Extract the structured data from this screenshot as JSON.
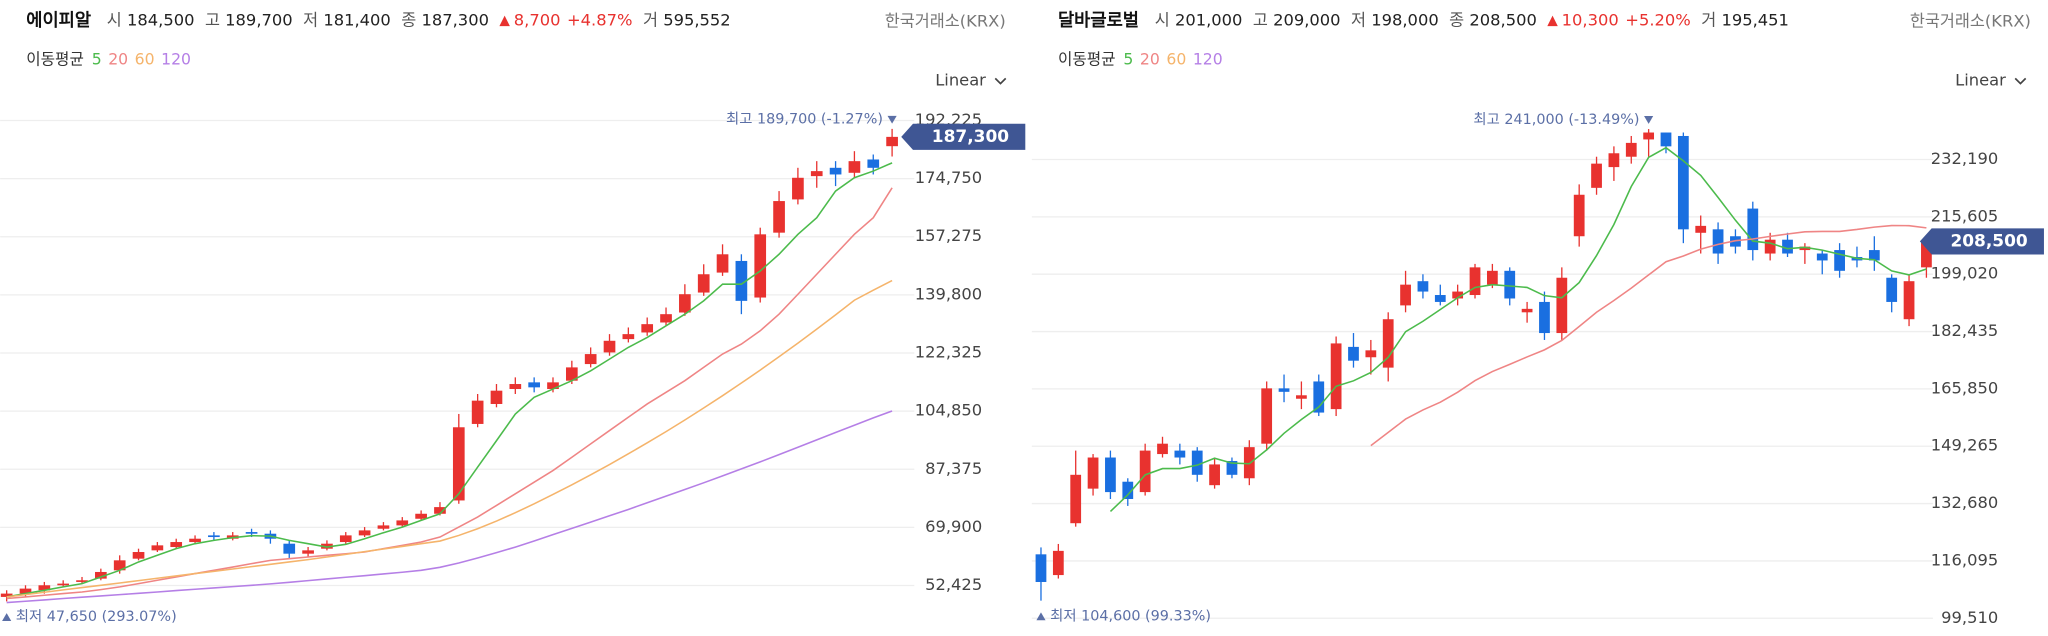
{
  "chart_data": [
    {
      "type": "candlestick",
      "title": "에이피알",
      "stats": [
        {
          "label": "시",
          "text": "184,500"
        },
        {
          "label": "고",
          "text": "189,700"
        },
        {
          "label": "저",
          "text": "181,400"
        },
        {
          "label": "종",
          "text": "187,300"
        }
      ],
      "change": {
        "text": "8,700",
        "percent": "+4.87%"
      },
      "volume": {
        "label": "거",
        "text": "595,552"
      },
      "exchange": "한국거래소(KRX)",
      "ma_label": "이동평균",
      "scale_label": "Linear",
      "high_label": "최고 189,700 (-1.27%)",
      "low_label": "최저 47,650 (293.07%)",
      "last_price": {
        "value": 187300,
        "label": "187,300"
      },
      "up_color": "#e8322f",
      "down_color": "#1a6fe0",
      "grid": true,
      "ylim": [
        40000,
        199000
      ],
      "yticks": [
        {
          "value": 52425,
          "label": "52,425"
        },
        {
          "value": 69900,
          "label": "69,900"
        },
        {
          "value": 87375,
          "label": "87,375"
        },
        {
          "value": 104850,
          "label": "104,850"
        },
        {
          "value": 122325,
          "label": "122,325"
        },
        {
          "value": 139800,
          "label": "139,800"
        },
        {
          "value": 157275,
          "label": "157,275"
        },
        {
          "value": 174750,
          "label": "174,750"
        },
        {
          "value": 192225,
          "label": "192,225"
        }
      ],
      "candles": {
        "open": [
          49000,
          50000,
          51000,
          52500,
          53500,
          54500,
          57000,
          60500,
          63000,
          64000,
          65500,
          67500,
          66500,
          68500,
          68000,
          65000,
          62000,
          63500,
          65500,
          67500,
          69500,
          70500,
          72500,
          74000,
          78000,
          101000,
          107000,
          111500,
          113500,
          111500,
          114000,
          119000,
          122500,
          126500,
          128500,
          131500,
          134500,
          140500,
          146500,
          150000,
          139000,
          158500,
          168500,
          175500,
          178000,
          176500,
          180500,
          184500
        ],
        "high": [
          51000,
          52500,
          53500,
          54000,
          55000,
          57500,
          61500,
          63500,
          65500,
          66500,
          67500,
          68500,
          68500,
          69500,
          69000,
          66000,
          64000,
          66000,
          68500,
          70000,
          71500,
          73000,
          75000,
          77500,
          104000,
          110000,
          113000,
          115000,
          115000,
          115000,
          120000,
          124000,
          128000,
          130000,
          133000,
          136000,
          143000,
          149000,
          155000,
          152000,
          160000,
          171000,
          178000,
          180000,
          180000,
          183000,
          182000,
          189700
        ],
        "low": [
          47650,
          49000,
          50000,
          52000,
          53000,
          54000,
          56000,
          60000,
          62500,
          63500,
          65000,
          66000,
          66000,
          67000,
          65000,
          60500,
          61000,
          63000,
          65000,
          67000,
          69000,
          70000,
          72000,
          73500,
          77000,
          100000,
          106000,
          110000,
          110500,
          110500,
          113000,
          118000,
          121500,
          125500,
          127500,
          130500,
          133500,
          139500,
          145500,
          134000,
          137500,
          157000,
          167000,
          172000,
          172500,
          175000,
          176000,
          181400
        ],
        "close": [
          50000,
          51500,
          52500,
          53000,
          54000,
          56500,
          60000,
          62500,
          64500,
          65500,
          66500,
          67000,
          67500,
          68000,
          66500,
          62000,
          63000,
          65000,
          67500,
          69000,
          70500,
          72000,
          74000,
          76000,
          100000,
          108000,
          111000,
          113000,
          112000,
          113500,
          118000,
          122000,
          126000,
          128000,
          131000,
          134000,
          140000,
          146000,
          152000,
          138000,
          158000,
          168000,
          175000,
          177000,
          176000,
          180000,
          178000,
          187300
        ]
      },
      "series": [
        {
          "name": "5",
          "color": "#4cbb4c",
          "values": [
            49000,
            50000,
            51000,
            52000,
            53000,
            55000,
            57000,
            59500,
            61500,
            63500,
            65000,
            66000,
            66800,
            67400,
            67300,
            66000,
            65000,
            64000,
            64800,
            66500,
            68300,
            70000,
            72000,
            74000,
            80000,
            88000,
            96000,
            104000,
            109000,
            111500,
            114000,
            117000,
            120500,
            124000,
            127000,
            130500,
            134000,
            138000,
            143000,
            143000,
            147000,
            152000,
            158000,
            163000,
            171000,
            175000,
            177000,
            179500
          ]
        },
        {
          "name": "20",
          "color": "#ef8585",
          "values": [
            48500,
            49000,
            49500,
            50000,
            50500,
            51200,
            52000,
            53000,
            54000,
            55000,
            56000,
            57000,
            58000,
            59000,
            60000,
            60500,
            61000,
            61500,
            62000,
            62500,
            63500,
            64500,
            65500,
            67000,
            70000,
            73000,
            76500,
            80000,
            83500,
            87000,
            91000,
            95000,
            99000,
            103000,
            107000,
            110500,
            114000,
            118000,
            122000,
            125000,
            129000,
            134000,
            140000,
            146000,
            152000,
            158000,
            163000,
            172000
          ]
        },
        {
          "name": "60",
          "color": "#f5b46b",
          "values": [
            49000,
            49700,
            50400,
            51100,
            51800,
            52500,
            53200,
            53900,
            54600,
            55300,
            56000,
            56700,
            57400,
            58100,
            58800,
            59500,
            60200,
            61000,
            61800,
            62600,
            63400,
            64200,
            65000,
            65800,
            67500,
            69500,
            71800,
            74300,
            77000,
            79800,
            82700,
            85700,
            88800,
            92000,
            95300,
            98700,
            102200,
            105800,
            109500,
            113300,
            117200,
            121200,
            125300,
            129500,
            133800,
            138200,
            141200,
            144100
          ]
        },
        {
          "name": "120",
          "color": "#b57fe6",
          "values": [
            47300,
            47700,
            48100,
            48500,
            48900,
            49300,
            49700,
            50100,
            50500,
            50900,
            51300,
            51700,
            52100,
            52500,
            52900,
            53400,
            53900,
            54400,
            54900,
            55400,
            55900,
            56400,
            57000,
            57900,
            59200,
            60700,
            62300,
            64000,
            65800,
            67700,
            69600,
            71500,
            73400,
            75300,
            77300,
            79300,
            81300,
            83300,
            85400,
            87500,
            89600,
            91800,
            94000,
            96200,
            98400,
            100600,
            102800,
            104900
          ]
        }
      ]
    },
    {
      "type": "candlestick",
      "title": "달바글로벌",
      "stats": [
        {
          "label": "시",
          "text": "201,000"
        },
        {
          "label": "고",
          "text": "209,000"
        },
        {
          "label": "저",
          "text": "198,000"
        },
        {
          "label": "종",
          "text": "208,500"
        }
      ],
      "change": {
        "text": "10,300",
        "percent": "+5.20%"
      },
      "volume": {
        "label": "거",
        "text": "195,451"
      },
      "exchange": "한국거래소(KRX)",
      "ma_label": "이동평균",
      "scale_label": "Linear",
      "high_label": "최고 241,000 (-13.49%)",
      "low_label": "최저 104,600 (99.33%)",
      "last_price": {
        "value": 208500,
        "label": "208,500"
      },
      "up_color": "#e8322f",
      "down_color": "#1a6fe0",
      "grid": true,
      "ylim": [
        94000,
        250000
      ],
      "yticks": [
        {
          "value": 99510,
          "label": "99,510"
        },
        {
          "value": 116095,
          "label": "116,095"
        },
        {
          "value": 132680,
          "label": "132,680"
        },
        {
          "value": 149265,
          "label": "149,265"
        },
        {
          "value": 165850,
          "label": "165,850"
        },
        {
          "value": 182435,
          "label": "182,435"
        },
        {
          "value": 199020,
          "label": "199,020"
        },
        {
          "value": 215605,
          "label": "215,605"
        },
        {
          "value": 232190,
          "label": "232,190"
        }
      ],
      "candles": {
        "open": [
          118000,
          112000,
          127000,
          137000,
          146000,
          139000,
          136000,
          147000,
          148000,
          148000,
          138000,
          145000,
          140000,
          150000,
          166000,
          163000,
          168000,
          160000,
          178000,
          175000,
          172000,
          190000,
          197000,
          193000,
          192000,
          193000,
          196000,
          200000,
          188000,
          191000,
          182000,
          210000,
          224000,
          230000,
          233000,
          238000,
          240000,
          239000,
          211000,
          212000,
          210000,
          218000,
          205000,
          209000,
          206000,
          205000,
          206000,
          204000,
          206000,
          198000,
          186000,
          201000
        ],
        "high": [
          120000,
          121000,
          148000,
          147000,
          148000,
          140000,
          150000,
          152000,
          150000,
          149000,
          146000,
          146000,
          151000,
          168000,
          170000,
          168000,
          170000,
          181000,
          182000,
          180000,
          188000,
          200000,
          199000,
          196000,
          196000,
          202000,
          202000,
          201000,
          191000,
          194000,
          201000,
          225000,
          233000,
          236000,
          239000,
          241000,
          240000,
          240000,
          216000,
          214000,
          212000,
          220000,
          211000,
          211000,
          208000,
          206000,
          208000,
          207000,
          210000,
          199000,
          199000,
          209000
        ],
        "low": [
          104600,
          111000,
          126000,
          135000,
          134000,
          132000,
          135000,
          146000,
          144000,
          139000,
          137000,
          140000,
          138000,
          148000,
          162000,
          160000,
          158000,
          158000,
          172000,
          170000,
          168000,
          188000,
          192000,
          190000,
          190000,
          192000,
          195000,
          190000,
          185000,
          180000,
          180000,
          207000,
          222000,
          226000,
          231000,
          233000,
          234000,
          208000,
          205000,
          202000,
          205000,
          203000,
          203000,
          204000,
          202000,
          199000,
          198000,
          201000,
          200000,
          188000,
          184000,
          198000
        ],
        "close": [
          110000,
          119000,
          141000,
          146000,
          136000,
          134000,
          148000,
          150000,
          146000,
          141000,
          144000,
          141000,
          149000,
          166000,
          165000,
          164000,
          159000,
          179000,
          174000,
          177000,
          186000,
          196000,
          194000,
          191000,
          194000,
          201000,
          200000,
          192000,
          189000,
          182000,
          198000,
          222000,
          231000,
          234000,
          237000,
          240000,
          236000,
          212000,
          213000,
          205000,
          207000,
          206000,
          209000,
          205000,
          207000,
          203000,
          200000,
          203000,
          203000,
          191000,
          197000,
          208500
        ]
      },
      "series": [
        {
          "name": "5",
          "color": "#4cbb4c",
          "values": [
            null,
            null,
            null,
            null,
            130400,
            135200,
            141000,
            142800,
            142800,
            143800,
            145800,
            144400,
            144200,
            148200,
            153000,
            157000,
            160600,
            166600,
            168200,
            170600,
            175000,
            182400,
            185400,
            188800,
            192200,
            195200,
            196000,
            195600,
            195200,
            192800,
            192200,
            196600,
            204400,
            213400,
            224400,
            232800,
            235600,
            231800,
            227600,
            221200,
            214600,
            208600,
            208000,
            206400,
            206800,
            206000,
            204800,
            203600,
            203200,
            200000,
            198800,
            200500
          ]
        },
        {
          "name": "20",
          "color": "#ef8585",
          "values": [
            null,
            null,
            null,
            null,
            null,
            null,
            null,
            null,
            null,
            null,
            null,
            null,
            null,
            null,
            null,
            null,
            null,
            null,
            null,
            149450,
            153250,
            157100,
            159750,
            162000,
            164900,
            168250,
            170850,
            172950,
            175100,
            177150,
            179850,
            183900,
            188000,
            191400,
            195000,
            198800,
            202650,
            204300,
            206250,
            207650,
            208700,
            209200,
            209950,
            210650,
            211300,
            211400,
            211400,
            211950,
            212650,
            213100,
            213050,
            212400
          ]
        },
        {
          "name": "60",
          "color": "#f5b46b",
          "values": [
            null,
            null,
            null,
            null,
            null,
            null,
            null,
            null,
            null,
            null,
            null,
            null,
            null,
            null,
            null,
            null,
            null,
            null,
            null,
            null,
            null,
            null,
            null,
            null,
            null,
            null,
            null,
            null,
            null,
            null,
            null,
            null,
            null,
            null,
            null,
            null,
            null,
            null,
            null,
            null,
            null,
            null,
            null,
            null,
            null,
            null,
            null,
            null,
            null,
            null,
            null,
            null
          ]
        },
        {
          "name": "120",
          "color": "#b57fe6",
          "values": [
            null,
            null,
            null,
            null,
            null,
            null,
            null,
            null,
            null,
            null,
            null,
            null,
            null,
            null,
            null,
            null,
            null,
            null,
            null,
            null,
            null,
            null,
            null,
            null,
            null,
            null,
            null,
            null,
            null,
            null,
            null,
            null,
            null,
            null,
            null,
            null,
            null,
            null,
            null,
            null,
            null,
            null,
            null,
            null,
            null,
            null,
            null,
            null,
            null,
            null,
            null,
            null
          ]
        }
      ]
    }
  ]
}
